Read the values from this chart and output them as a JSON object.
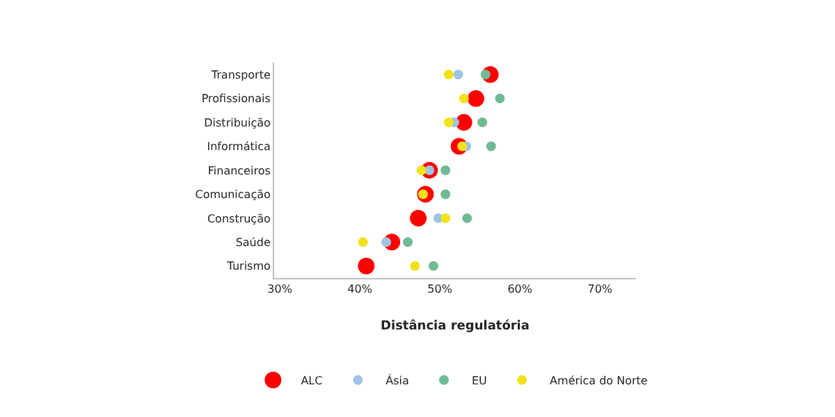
{
  "chart_data": {
    "type": "scatter",
    "orientation": "horizontal",
    "xlabel": "Distância regulatória",
    "categories": [
      "Transporte",
      "Profissionais",
      "Distribuição",
      "Informática",
      "Financeiros",
      "Comunicação",
      "Construção",
      "Saúde",
      "Turismo"
    ],
    "series": [
      {
        "name": "ALC",
        "color": "#ff0000",
        "values": [
          56.3,
          54.5,
          53.0,
          52.4,
          48.7,
          48.2,
          47.3,
          44.0,
          40.8
        ]
      },
      {
        "name": "Ásia",
        "color": "#9dc3e6",
        "values": [
          52.3,
          null,
          51.8,
          53.3,
          48.7,
          null,
          49.8,
          43.3,
          null
        ]
      },
      {
        "name": "EU",
        "color": "#70ba94",
        "values": [
          55.7,
          57.5,
          55.3,
          56.4,
          50.7,
          50.7,
          53.4,
          46.0,
          49.2
        ]
      },
      {
        "name": "América do Norte",
        "color": "#f2e21b",
        "values": [
          51.1,
          53.0,
          51.1,
          52.8,
          47.7,
          47.9,
          50.7,
          40.4,
          46.9
        ]
      }
    ],
    "xlim": [
      29.3,
      74.5
    ],
    "xticks": [
      {
        "value": 30,
        "label": "30%"
      },
      {
        "value": 40,
        "label": "40%"
      },
      {
        "value": 50,
        "label": "50%"
      },
      {
        "value": 60,
        "label": "60%"
      },
      {
        "value": 70,
        "label": "70%"
      }
    ],
    "marker": "circle",
    "grid": false,
    "legend": "bottom"
  }
}
